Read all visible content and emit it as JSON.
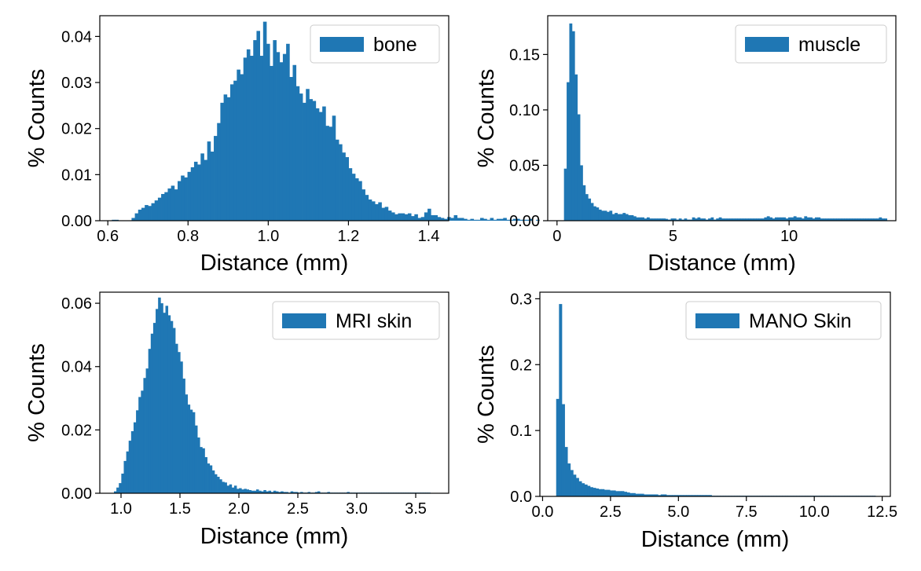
{
  "chart_data": [
    {
      "type": "bar",
      "xlabel": "Distance (mm)",
      "ylabel": "% Counts",
      "legend": "bone",
      "legend_position": "top-right",
      "color": "#1f77b4",
      "xlim": [
        0.58,
        1.45
      ],
      "ylim": [
        0,
        0.0445
      ],
      "xticks": [
        0.6,
        0.8,
        1.0,
        1.2,
        1.4
      ],
      "xtick_labels": [
        "0.6",
        "0.8",
        "1.0",
        "1.2",
        "1.4"
      ],
      "yticks": [
        0,
        0.01,
        0.02,
        0.03,
        0.04
      ],
      "ytick_labels": [
        "0.00",
        "0.01",
        "0.02",
        "0.03",
        "0.04"
      ],
      "bin_start": 0.61,
      "bin_width": 0.0082,
      "values": [
        0.0002,
        0.0002,
        0,
        0,
        0,
        0,
        0.0006,
        0.0016,
        0.0024,
        0.0028,
        0.0034,
        0.0032,
        0.0038,
        0.0044,
        0.005,
        0.0058,
        0.0062,
        0.007,
        0.0076,
        0.0068,
        0.0086,
        0.0098,
        0.0094,
        0.0106,
        0.0116,
        0.0128,
        0.0122,
        0.0146,
        0.0132,
        0.0172,
        0.015,
        0.0184,
        0.0212,
        0.0256,
        0.0274,
        0.0268,
        0.0296,
        0.0304,
        0.0328,
        0.0318,
        0.0354,
        0.0372,
        0.0358,
        0.0392,
        0.0412,
        0.0358,
        0.0432,
        0.0384,
        0.0336,
        0.0392,
        0.0366,
        0.0344,
        0.0362,
        0.0384,
        0.0312,
        0.0338,
        0.0292,
        0.0276,
        0.0256,
        0.0286,
        0.0264,
        0.026,
        0.0244,
        0.0236,
        0.0248,
        0.0206,
        0.0204,
        0.0228,
        0.0176,
        0.0166,
        0.0148,
        0.0138,
        0.0114,
        0.0102,
        0.0092,
        0.0086,
        0.0068,
        0.0056,
        0.0046,
        0.0042,
        0.0036,
        0.004,
        0.0028,
        0.003,
        0.0022,
        0.0018,
        0.0014,
        0.0016,
        0.0016,
        0.0014,
        0.0016,
        0.001,
        0.0014,
        0.0006,
        0.0008,
        0.0018,
        0.0026,
        0.0012,
        0.0012,
        0.0008,
        0.0006,
        0.0004,
        0.0008,
        0.0006,
        0.0012,
        0.0006,
        0.0006,
        0.0004,
        0.0002,
        0.0004,
        0.0002,
        0.0002,
        0.0006,
        0.0004,
        0.0002,
        0.0006,
        0.0002,
        0.0004,
        0.0004,
        0.0006,
        0.0002,
        0.0002,
        0.0004,
        0.0004,
        0.0002,
        0.0002,
        0.0002,
        0.0004,
        0,
        0.0002,
        0,
        0,
        0,
        0,
        0,
        0,
        0,
        0,
        0,
        0,
        0,
        0,
        0,
        0,
        0,
        0,
        0,
        0,
        0.0002,
        0,
        0,
        0,
        0,
        0,
        0,
        0,
        0,
        0,
        0,
        0,
        0,
        0,
        0,
        0,
        0,
        0,
        0,
        0,
        0.0004,
        0.0002,
        0.0002
      ]
    },
    {
      "type": "bar",
      "xlabel": "Distance (mm)",
      "ylabel": "% Counts",
      "legend": "muscle",
      "legend_position": "top-right",
      "color": "#1f77b4",
      "xlim": [
        -0.4,
        14.6
      ],
      "ylim": [
        0,
        0.185
      ],
      "xticks": [
        0,
        5,
        10
      ],
      "xtick_labels": [
        "0",
        "5",
        "10"
      ],
      "yticks": [
        0,
        0.05,
        0.1,
        0.15
      ],
      "ytick_labels": [
        "0.00",
        "0.05",
        "0.10",
        "0.15"
      ],
      "bin_start": 0.3,
      "bin_width": 0.115,
      "values": [
        0.047,
        0.125,
        0.178,
        0.171,
        0.132,
        0.096,
        0.05,
        0.032,
        0.024,
        0.02,
        0.016,
        0.013,
        0.012,
        0.01,
        0.009,
        0.009,
        0.008,
        0.009,
        0.006,
        0.007,
        0.006,
        0.006,
        0.007,
        0.006,
        0.005,
        0.005,
        0.004,
        0.003,
        0.003,
        0.003,
        0.002,
        0.003,
        0.002,
        0.002,
        0.002,
        0.002,
        0.002,
        0.002,
        0.001,
        0.001,
        0.002,
        0.002,
        0.001,
        0.002,
        0.001,
        0.002,
        0.001,
        0.001,
        0.003,
        0.002,
        0.003,
        0.002,
        0.002,
        0.001,
        0.002,
        0.003,
        0.001,
        0.002,
        0.003,
        0.002,
        0.002,
        0.002,
        0.002,
        0.002,
        0.002,
        0.002,
        0.002,
        0.002,
        0.002,
        0.002,
        0.002,
        0.002,
        0.002,
        0.002,
        0.002,
        0.003,
        0.004,
        0.003,
        0.002,
        0.003,
        0.003,
        0.003,
        0.003,
        0.002,
        0.003,
        0.003,
        0.004,
        0.003,
        0.003,
        0.002,
        0.004,
        0.003,
        0.003,
        0.002,
        0.003,
        0.003,
        0.002,
        0.002,
        0.002,
        0.002,
        0.002,
        0.002,
        0.002,
        0.002,
        0.002,
        0.002,
        0.002,
        0.002,
        0.002,
        0.002,
        0.002,
        0.002,
        0.002,
        0.002,
        0.002,
        0.002,
        0.002,
        0.002,
        0.003,
        0.002,
        0.002
      ]
    },
    {
      "type": "bar",
      "xlabel": "Distance (mm)",
      "ylabel": "% Counts",
      "legend": "MRI skin",
      "legend_position": "top-right",
      "color": "#1f77b4",
      "xlim": [
        0.82,
        3.78
      ],
      "ylim": [
        0,
        0.0635
      ],
      "xticks": [
        1.0,
        1.5,
        2.0,
        2.5,
        3.0,
        3.5
      ],
      "xtick_labels": [
        "1.0",
        "1.5",
        "2.0",
        "2.5",
        "3.0",
        "3.5"
      ],
      "yticks": [
        0,
        0.02,
        0.04,
        0.06
      ],
      "ytick_labels": [
        "0.00",
        "0.02",
        "0.04",
        "0.06"
      ],
      "bin_start": 0.94,
      "bin_width": 0.0208,
      "values": [
        0.0006,
        0.0018,
        0.0032,
        0.0062,
        0.0102,
        0.0132,
        0.0166,
        0.0196,
        0.0224,
        0.0262,
        0.0304,
        0.0324,
        0.0364,
        0.0394,
        0.0456,
        0.0504,
        0.0538,
        0.0582,
        0.0618,
        0.06,
        0.057,
        0.0592,
        0.0562,
        0.0544,
        0.0522,
        0.0472,
        0.0446,
        0.0416,
        0.0362,
        0.0312,
        0.028,
        0.0264,
        0.0256,
        0.0214,
        0.0176,
        0.0146,
        0.0142,
        0.0114,
        0.0094,
        0.0088,
        0.0072,
        0.006,
        0.0052,
        0.0044,
        0.0036,
        0.0034,
        0.0024,
        0.0028,
        0.0018,
        0.0024,
        0.0014,
        0.0016,
        0.0012,
        0.0014,
        0.0012,
        0.001,
        0.0008,
        0.0008,
        0.0012,
        0.0008,
        0.0006,
        0.001,
        0.0006,
        0.0008,
        0.0004,
        0.0008,
        0.0006,
        0.0004,
        0.0006,
        0.0004,
        0.0004,
        0.0002,
        0.0006,
        0.0004,
        0.0004,
        0.0002,
        0.0004,
        0.0002,
        0.0002,
        0.0004,
        0.0002,
        0.0002,
        0.0004,
        0.0006,
        0.0002,
        0.0002,
        0.0002,
        0.0004,
        0.0002,
        0.0002,
        0.0002,
        0.0002,
        0.0002,
        0.0002,
        0.0002,
        0.0004,
        0.0002,
        0.0002,
        0.0002,
        0.0002,
        0.0002,
        0.0002,
        0.0002,
        0.0002,
        0.0002,
        0.0002,
        0.0002,
        0.0002,
        0.0002,
        0.0002,
        0.0002,
        0.0002,
        0.0002,
        0.0002,
        0.0002,
        0.0002,
        0.0002,
        0.0002,
        0.0002,
        0.0002,
        0.0002,
        0.0002,
        0.0002,
        0.0002,
        0.0002,
        0.0002,
        0.0002,
        0.0002,
        0.0002
      ]
    },
    {
      "type": "bar",
      "xlabel": "Distance (mm)",
      "ylabel": "% Counts",
      "legend": "MANO Skin",
      "legend_position": "top-right",
      "color": "#1f77b4",
      "xlim": [
        -0.1,
        12.8
      ],
      "ylim": [
        0,
        0.31
      ],
      "xticks": [
        0.0,
        2.5,
        5.0,
        7.5,
        10.0,
        12.5
      ],
      "xtick_labels": [
        "0.0",
        "2.5",
        "5.0",
        "7.5",
        "10.0",
        "12.5"
      ],
      "yticks": [
        0,
        0.1,
        0.2,
        0.3
      ],
      "ytick_labels": [
        "0.0",
        "0.1",
        "0.2",
        "0.3"
      ],
      "bin_start": 0.5,
      "bin_width": 0.104,
      "values": [
        0.148,
        0.292,
        0.14,
        0.075,
        0.05,
        0.04,
        0.033,
        0.028,
        0.023,
        0.02,
        0.018,
        0.016,
        0.014,
        0.013,
        0.012,
        0.011,
        0.011,
        0.01,
        0.01,
        0.009,
        0.009,
        0.008,
        0.008,
        0.008,
        0.007,
        0.006,
        0.005,
        0.005,
        0.004,
        0.004,
        0.004,
        0.003,
        0.003,
        0.003,
        0.003,
        0.003,
        0.002,
        0.003,
        0.003,
        0.002,
        0.002,
        0.002,
        0.002,
        0.002,
        0.002,
        0.002,
        0.002,
        0.002,
        0.002,
        0.002,
        0.002,
        0.002,
        0.002,
        0.002,
        0.002,
        0.001,
        0.001,
        0.001,
        0.001,
        0.001,
        0.001,
        0.001,
        0.001,
        0.001,
        0.001,
        0.001,
        0.001,
        0.001,
        0.001,
        0.001,
        0.001,
        0.001,
        0.001,
        0.001,
        0.001,
        0.001,
        0.001,
        0.001,
        0.001,
        0.001,
        0.001,
        0.001,
        0.001,
        0.001,
        0.001,
        0.001,
        0.001,
        0.001,
        0.001,
        0.001,
        0.001,
        0.001,
        0.001,
        0.001,
        0.001,
        0.001,
        0.001,
        0.001,
        0.001,
        0.001,
        0.001,
        0.001,
        0.001,
        0.001,
        0.001,
        0.001,
        0.001,
        0.001,
        0.001,
        0.001,
        0.001,
        0.001,
        0.001
      ]
    }
  ]
}
